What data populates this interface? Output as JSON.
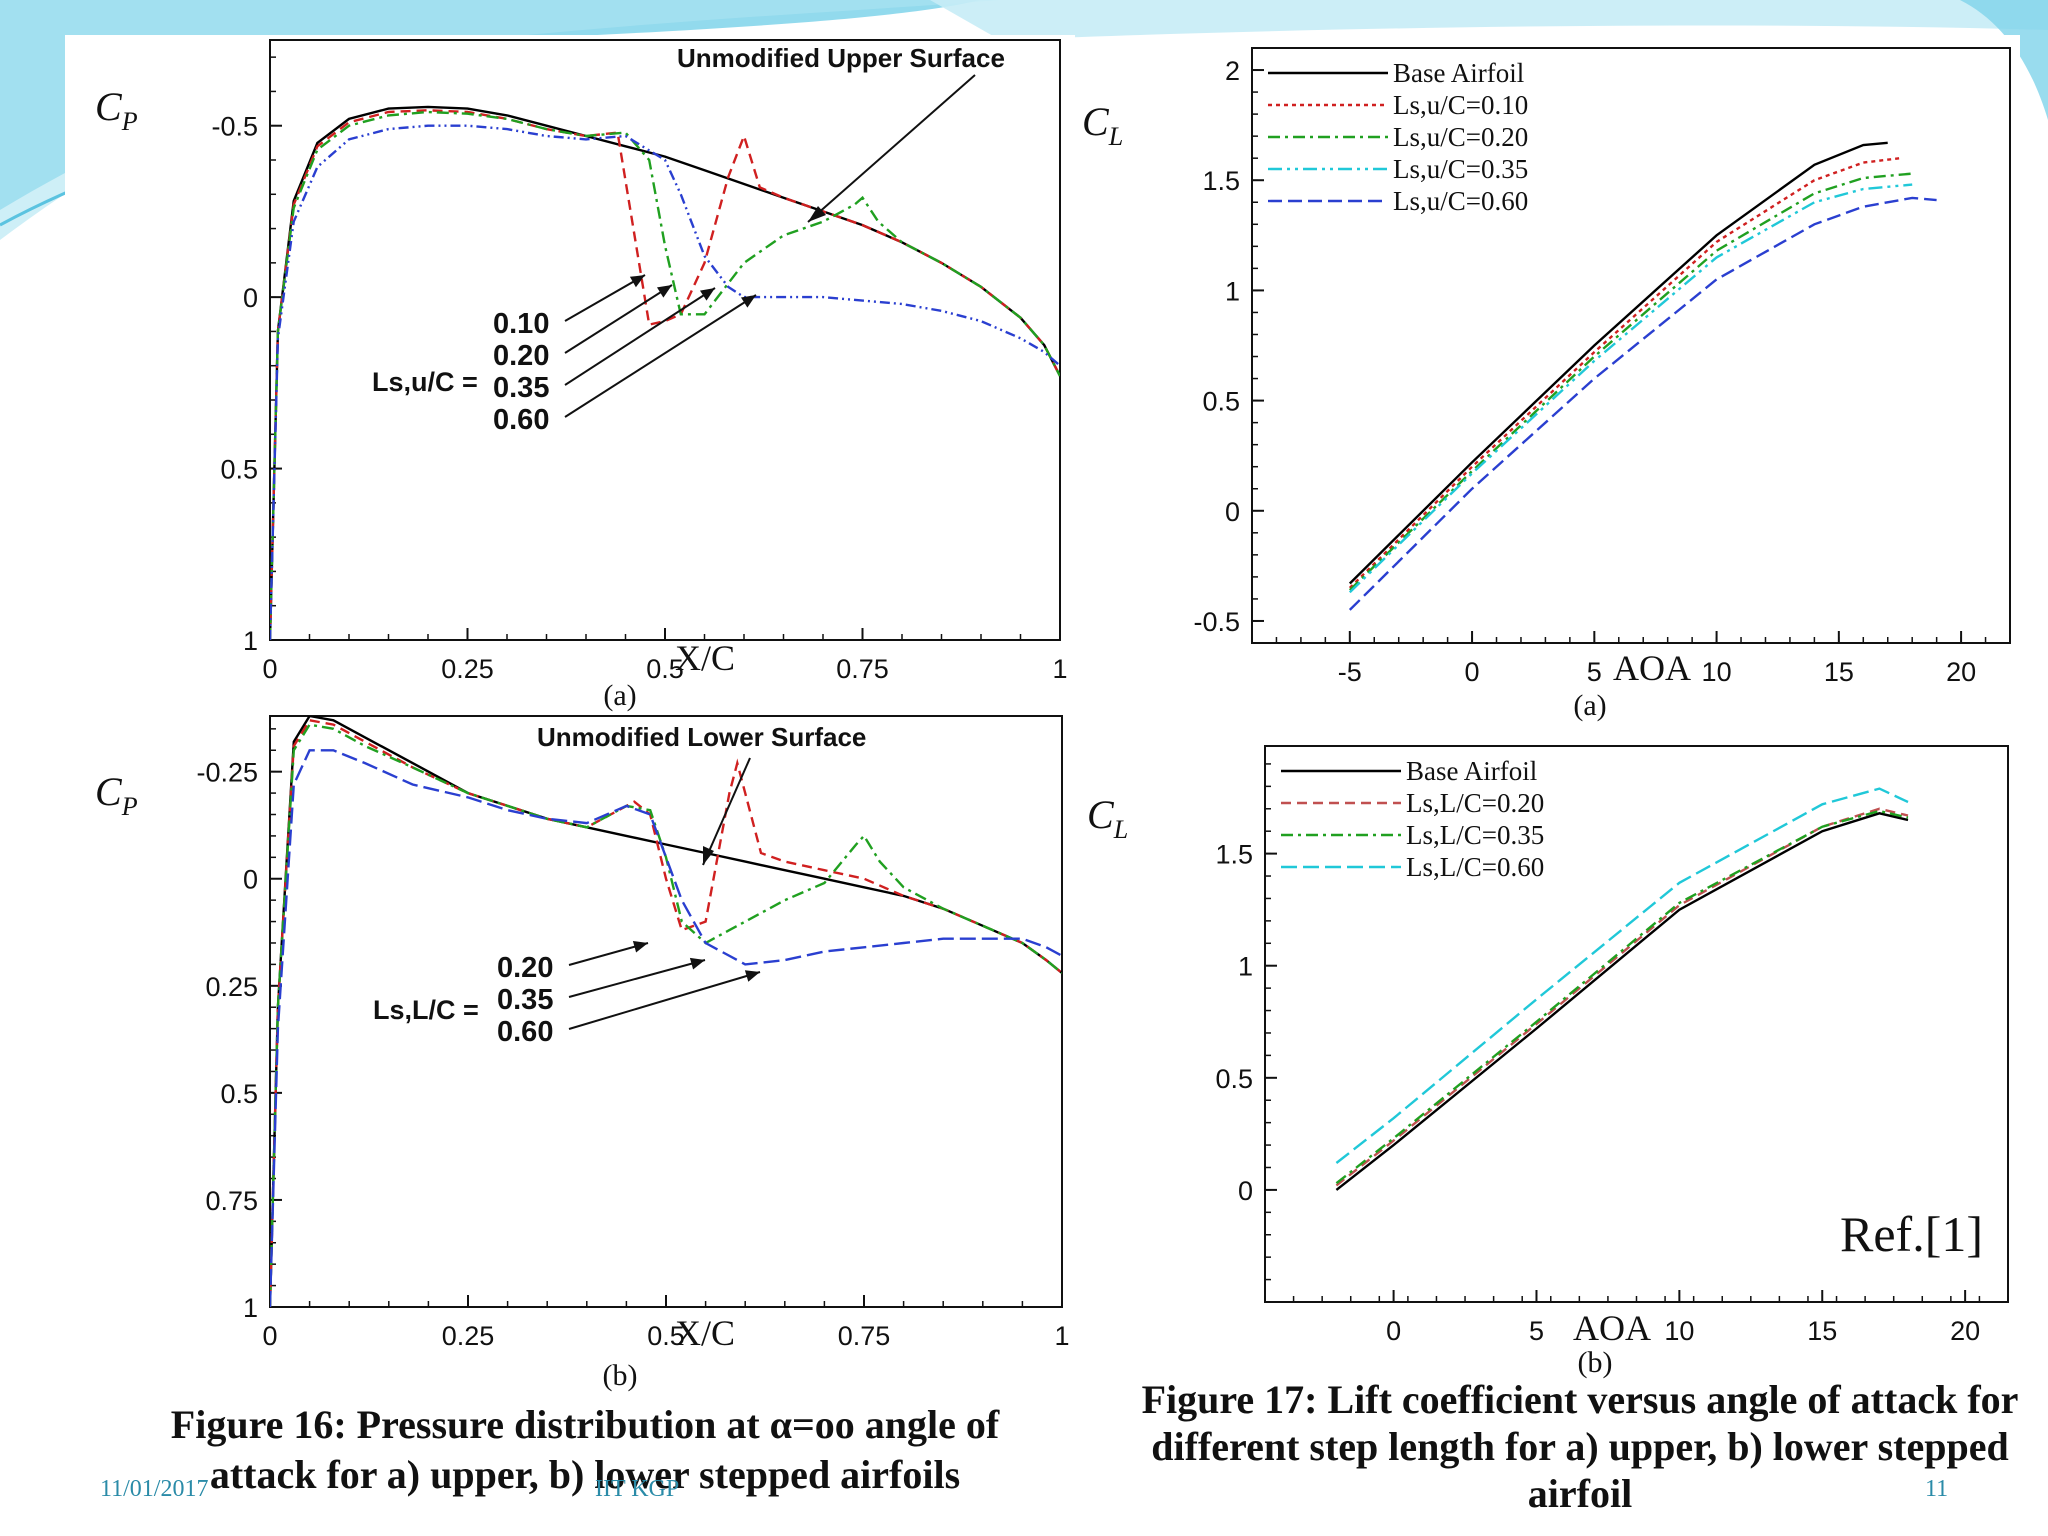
{
  "slide": {
    "caption_fig16": "Figure 16: Pressure distribution at α=oo angle of attack for a) upper, b) lower stepped airfoils",
    "caption_fig17": "Figure 17: Lift coefficient versus angle of attack for different step length for a) upper, b) lower stepped airfoil",
    "footer_date": "11/01/2017",
    "footer_institution": "IIT KGP",
    "page_number": "11",
    "reference": "Ref.[1]",
    "colors": {
      "accent": "#5bc3e0",
      "footer": "#2a8ba8"
    }
  },
  "chart_data": [
    {
      "id": "fig16a",
      "type": "line",
      "panel_label": "(a)",
      "xlabel": "X/C",
      "ylabel": "C_P",
      "xlim": [
        0,
        1
      ],
      "ylim": [
        -0.75,
        1
      ],
      "y_inverted": true,
      "xticks": [
        0,
        0.25,
        0.5,
        0.75,
        1
      ],
      "xtick_labels": [
        "0",
        "0.25",
        "0.5",
        "0.75",
        "1"
      ],
      "yticks": [
        -0.5,
        0,
        0.5,
        1
      ],
      "ytick_labels": [
        "-0.5",
        "0",
        "0.5",
        "1"
      ],
      "annotation": "Unmodified Upper Surface",
      "label_prefix": "Ls,u/C =",
      "step_labels": [
        "0.10",
        "0.20",
        "0.35",
        "0.60"
      ],
      "series": [
        {
          "color": "#000000",
          "dash": "",
          "x": [
            0,
            0.01,
            0.03,
            0.06,
            0.1,
            0.15,
            0.2,
            0.25,
            0.3,
            0.35,
            0.4,
            0.45,
            0.5,
            0.55,
            0.6,
            0.65,
            0.7,
            0.75,
            0.8,
            0.85,
            0.9,
            0.95,
            0.98,
            1.0
          ],
          "y": [
            1.0,
            0.1,
            -0.28,
            -0.45,
            -0.52,
            -0.55,
            -0.555,
            -0.55,
            -0.53,
            -0.5,
            -0.47,
            -0.44,
            -0.41,
            -0.37,
            -0.33,
            -0.29,
            -0.25,
            -0.21,
            -0.16,
            -0.1,
            -0.03,
            0.06,
            0.14,
            0.23
          ]
        },
        {
          "color": "#d02020",
          "dash": "10,6",
          "x": [
            0,
            0.01,
            0.03,
            0.06,
            0.1,
            0.15,
            0.2,
            0.25,
            0.3,
            0.35,
            0.4,
            0.44,
            0.46,
            0.48,
            0.5,
            0.52,
            0.55,
            0.58,
            0.6,
            0.62,
            0.65,
            0.7,
            0.75,
            0.8,
            0.85,
            0.9,
            0.95,
            0.98,
            1.0
          ],
          "y": [
            1.0,
            0.1,
            -0.27,
            -0.44,
            -0.51,
            -0.54,
            -0.545,
            -0.54,
            -0.52,
            -0.49,
            -0.47,
            -0.48,
            -0.2,
            0.08,
            0.07,
            0.05,
            -0.1,
            -0.35,
            -0.47,
            -0.32,
            -0.29,
            -0.25,
            -0.21,
            -0.16,
            -0.1,
            -0.03,
            0.06,
            0.14,
            0.23
          ]
        },
        {
          "color": "#20a020",
          "dash": "12,5,3,5",
          "x": [
            0,
            0.01,
            0.03,
            0.06,
            0.1,
            0.15,
            0.2,
            0.25,
            0.3,
            0.35,
            0.4,
            0.45,
            0.48,
            0.5,
            0.52,
            0.55,
            0.6,
            0.65,
            0.7,
            0.74,
            0.75,
            0.77,
            0.8,
            0.85,
            0.9,
            0.95,
            0.98,
            1.0
          ],
          "y": [
            1.0,
            0.1,
            -0.26,
            -0.43,
            -0.5,
            -0.53,
            -0.54,
            -0.535,
            -0.52,
            -0.49,
            -0.47,
            -0.48,
            -0.4,
            -0.15,
            0.05,
            0.05,
            -0.1,
            -0.18,
            -0.22,
            -0.27,
            -0.29,
            -0.22,
            -0.16,
            -0.1,
            -0.03,
            0.06,
            0.14,
            0.23
          ]
        },
        {
          "color": "#2a3fd0",
          "dash": "10,4,2,4,2,4",
          "x": [
            0,
            0.01,
            0.03,
            0.06,
            0.1,
            0.15,
            0.2,
            0.25,
            0.3,
            0.35,
            0.4,
            0.45,
            0.5,
            0.52,
            0.55,
            0.58,
            0.6,
            0.65,
            0.7,
            0.75,
            0.8,
            0.85,
            0.9,
            0.95,
            0.98,
            1.0
          ],
          "y": [
            1.0,
            0.12,
            -0.22,
            -0.38,
            -0.46,
            -0.49,
            -0.5,
            -0.5,
            -0.49,
            -0.47,
            -0.46,
            -0.47,
            -0.4,
            -0.3,
            -0.12,
            -0.03,
            0.0,
            0.0,
            0.0,
            0.01,
            0.02,
            0.04,
            0.07,
            0.12,
            0.16,
            0.2
          ]
        }
      ]
    },
    {
      "id": "fig16b",
      "type": "line",
      "panel_label": "(b)",
      "xlabel": "X/C",
      "ylabel": "C_P",
      "xlim": [
        0,
        1
      ],
      "ylim": [
        -0.38,
        1
      ],
      "y_inverted": true,
      "xticks": [
        0,
        0.25,
        0.5,
        0.75,
        1
      ],
      "xtick_labels": [
        "0",
        "0.25",
        "0.5",
        "0.75",
        "1"
      ],
      "yticks": [
        -0.25,
        0,
        0.25,
        0.5,
        0.75,
        1
      ],
      "ytick_labels": [
        "-0.25",
        "0",
        "0.25",
        "0.5",
        "0.75",
        "1"
      ],
      "annotation": "Unmodified Lower Surface",
      "label_prefix": "Ls,L/C =",
      "step_labels": [
        "0.20",
        "0.35",
        "0.60"
      ],
      "series": [
        {
          "color": "#000000",
          "dash": "",
          "x": [
            0,
            0.01,
            0.03,
            0.05,
            0.08,
            0.12,
            0.18,
            0.25,
            0.3,
            0.35,
            0.4,
            0.45,
            0.5,
            0.55,
            0.6,
            0.65,
            0.7,
            0.75,
            0.8,
            0.85,
            0.9,
            0.95,
            0.98,
            1.0
          ],
          "y": [
            1.0,
            0.3,
            -0.32,
            -0.38,
            -0.37,
            -0.33,
            -0.27,
            -0.2,
            -0.17,
            -0.14,
            -0.12,
            -0.1,
            -0.08,
            -0.06,
            -0.04,
            -0.02,
            0.0,
            0.02,
            0.04,
            0.07,
            0.11,
            0.15,
            0.19,
            0.22
          ]
        },
        {
          "color": "#d02020",
          "dash": "10,6",
          "x": [
            0,
            0.01,
            0.03,
            0.05,
            0.08,
            0.12,
            0.18,
            0.25,
            0.3,
            0.35,
            0.4,
            0.43,
            0.46,
            0.48,
            0.5,
            0.52,
            0.55,
            0.58,
            0.59,
            0.6,
            0.62,
            0.65,
            0.7,
            0.75,
            0.8,
            0.85,
            0.9,
            0.95,
            0.98,
            1.0
          ],
          "y": [
            1.0,
            0.3,
            -0.31,
            -0.37,
            -0.36,
            -0.32,
            -0.26,
            -0.2,
            -0.17,
            -0.14,
            -0.12,
            -0.15,
            -0.18,
            -0.15,
            0.0,
            0.12,
            0.1,
            -0.2,
            -0.27,
            -0.2,
            -0.06,
            -0.04,
            -0.02,
            0.0,
            0.04,
            0.07,
            0.11,
            0.15,
            0.19,
            0.22
          ]
        },
        {
          "color": "#20a020",
          "dash": "12,5,3,5",
          "x": [
            0,
            0.01,
            0.03,
            0.05,
            0.08,
            0.12,
            0.18,
            0.25,
            0.3,
            0.35,
            0.4,
            0.45,
            0.48,
            0.5,
            0.52,
            0.55,
            0.58,
            0.65,
            0.7,
            0.74,
            0.75,
            0.77,
            0.8,
            0.85,
            0.9,
            0.95,
            0.98,
            1.0
          ],
          "y": [
            1.0,
            0.3,
            -0.3,
            -0.36,
            -0.35,
            -0.31,
            -0.26,
            -0.2,
            -0.17,
            -0.14,
            -0.12,
            -0.17,
            -0.16,
            -0.05,
            0.1,
            0.15,
            0.12,
            0.05,
            0.01,
            -0.08,
            -0.1,
            -0.04,
            0.02,
            0.07,
            0.11,
            0.15,
            0.19,
            0.22
          ]
        },
        {
          "color": "#2a3fd0",
          "dash": "16,6",
          "x": [
            0,
            0.01,
            0.03,
            0.05,
            0.08,
            0.12,
            0.18,
            0.25,
            0.3,
            0.35,
            0.4,
            0.45,
            0.48,
            0.5,
            0.52,
            0.55,
            0.6,
            0.65,
            0.7,
            0.75,
            0.8,
            0.85,
            0.9,
            0.95,
            0.98,
            1.0
          ],
          "y": [
            1.0,
            0.35,
            -0.22,
            -0.3,
            -0.3,
            -0.27,
            -0.22,
            -0.19,
            -0.16,
            -0.14,
            -0.13,
            -0.17,
            -0.15,
            -0.05,
            0.05,
            0.15,
            0.2,
            0.19,
            0.17,
            0.16,
            0.15,
            0.14,
            0.14,
            0.14,
            0.16,
            0.18
          ]
        }
      ]
    },
    {
      "id": "fig17a",
      "type": "line",
      "panel_label": "(a)",
      "xlabel": "AOA",
      "ylabel": "C_L",
      "xlim": [
        -9,
        22
      ],
      "ylim": [
        -0.6,
        2.1
      ],
      "xticks": [
        -5,
        0,
        5,
        10,
        15,
        20
      ],
      "xtick_labels": [
        "-5",
        "0",
        "5",
        "10",
        "15",
        "20"
      ],
      "yticks": [
        -0.5,
        0,
        0.5,
        1,
        1.5,
        2
      ],
      "ytick_labels": [
        "-0.5",
        "0",
        "0.5",
        "1",
        "1.5",
        "2"
      ],
      "legend_position": "top-left",
      "series": [
        {
          "name": "Base Airfoil",
          "color": "#000000",
          "dash": "",
          "x": [
            -5,
            0,
            5,
            10,
            14,
            16,
            17
          ],
          "y": [
            -0.33,
            0.22,
            0.75,
            1.25,
            1.57,
            1.66,
            1.67
          ]
        },
        {
          "name": "Ls,u/C=0.10",
          "color": "#d02020",
          "dash": "4,4",
          "x": [
            -5,
            0,
            5,
            10,
            14,
            16,
            17.5
          ],
          "y": [
            -0.35,
            0.2,
            0.72,
            1.22,
            1.5,
            1.58,
            1.6
          ]
        },
        {
          "name": "Ls,u/C=0.20",
          "color": "#20a020",
          "dash": "12,5,3,5",
          "x": [
            -5,
            0,
            5,
            10,
            14,
            16,
            18
          ],
          "y": [
            -0.36,
            0.18,
            0.7,
            1.18,
            1.44,
            1.51,
            1.53
          ]
        },
        {
          "name": "Ls,u/C=0.35",
          "color": "#20c8d8",
          "dash": "14,5,3,5,3,5",
          "x": [
            -5,
            0,
            5,
            10,
            14,
            16,
            18
          ],
          "y": [
            -0.37,
            0.17,
            0.68,
            1.15,
            1.4,
            1.46,
            1.48
          ]
        },
        {
          "name": "Ls,u/C=0.60",
          "color": "#2a3fd0",
          "dash": "14,6",
          "x": [
            -5,
            0,
            5,
            10,
            14,
            16,
            18,
            19
          ],
          "y": [
            -0.45,
            0.1,
            0.6,
            1.05,
            1.3,
            1.38,
            1.42,
            1.41
          ]
        }
      ]
    },
    {
      "id": "fig17b",
      "type": "line",
      "panel_label": "(b)",
      "xlabel": "AOA",
      "ylabel": "C_L",
      "xlim": [
        -4.5,
        21.5
      ],
      "ylim": [
        -0.5,
        1.98
      ],
      "xticks": [
        0,
        5,
        10,
        15,
        20
      ],
      "xtick_labels": [
        "0",
        "5",
        "10",
        "15",
        "20"
      ],
      "yticks": [
        0,
        0.5,
        1,
        1.5
      ],
      "ytick_labels": [
        "0",
        "0.5",
        "1",
        "1.5"
      ],
      "legend_position": "top-left",
      "series": [
        {
          "name": "Base Airfoil",
          "color": "#000000",
          "dash": "",
          "x": [
            -2,
            0,
            5,
            10,
            15,
            17,
            18
          ],
          "y": [
            0.0,
            0.2,
            0.72,
            1.25,
            1.6,
            1.68,
            1.65
          ]
        },
        {
          "name": "Ls,L/C=0.20",
          "color": "#c05050",
          "dash": "10,6",
          "x": [
            -2,
            0,
            5,
            10,
            15,
            17,
            18
          ],
          "y": [
            0.02,
            0.22,
            0.74,
            1.27,
            1.62,
            1.7,
            1.67
          ]
        },
        {
          "name": "Ls,L/C=0.35",
          "color": "#20a020",
          "dash": "12,5,3,5",
          "x": [
            -2,
            0,
            5,
            10,
            15,
            17,
            18
          ],
          "y": [
            0.03,
            0.23,
            0.75,
            1.28,
            1.62,
            1.69,
            1.66
          ]
        },
        {
          "name": "Ls,L/C=0.60",
          "color": "#20c8d8",
          "dash": "16,6",
          "x": [
            -2,
            0,
            5,
            10,
            15,
            17,
            18
          ],
          "y": [
            0.12,
            0.32,
            0.85,
            1.37,
            1.72,
            1.79,
            1.73
          ]
        }
      ]
    }
  ]
}
